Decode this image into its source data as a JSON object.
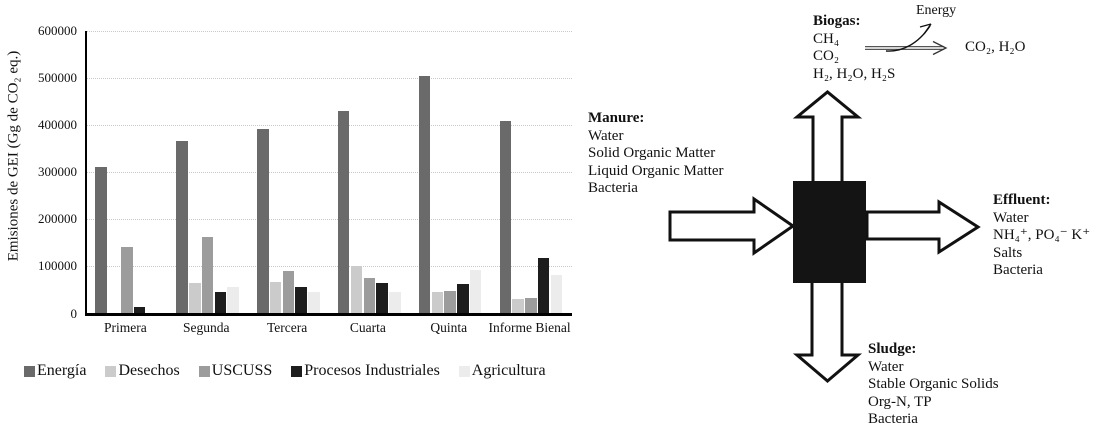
{
  "figure": {
    "chart": {
      "y_axis_title": "Emisiones de GEI (Gg de CO₂ eq.)",
      "chart_data": {
        "type": "bar",
        "title": "",
        "xlabel": "",
        "ylabel": "Emisiones de GEI (Gg de CO2 eq.)",
        "categories": [
          "Primera",
          "Segunda",
          "Tercera",
          "Cuarta",
          "Quinta",
          "Informe Bienal"
        ],
        "series": [
          {
            "name": "Energía",
            "color": "#6a6a6a",
            "values": [
              310000,
              365000,
              392000,
              430000,
              505000,
              408000
            ]
          },
          {
            "name": "Desechos",
            "color": "#cbcbcb",
            "values": [
              0,
              63000,
              67000,
              100000,
              44000,
              30000
            ]
          },
          {
            "name": "USCUSS",
            "color": "#9c9c9c",
            "values": [
              140000,
              161000,
              90000,
              74000,
              47000,
              32000
            ]
          },
          {
            "name": "Procesos Industriales",
            "color": "#1d1d1d",
            "values": [
              13000,
              45000,
              55000,
              64000,
              61000,
              116000
            ]
          },
          {
            "name": "Agricultura",
            "color": "#ececec",
            "values": [
              0,
              56000,
              45000,
              45000,
              91000,
              81000
            ]
          }
        ],
        "ylim": [
          0,
          600000
        ],
        "ytick_step": 100000,
        "grid": true,
        "legend_position": "bottom"
      }
    },
    "diagram": {
      "manure": {
        "title": "Manure:",
        "items": [
          "Water",
          "Solid Organic Matter",
          "Liquid Organic Matter",
          "Bacteria"
        ]
      },
      "biogas": {
        "title": "Biogas:",
        "items": [
          "CH₄",
          "CO₂",
          "H₂, H₂O, H₂S"
        ]
      },
      "effluent": {
        "title": "Effluent:",
        "items": [
          "Water",
          "NH₄⁺, PO₄⁻ K⁺",
          "Salts",
          "Bacteria"
        ]
      },
      "sludge": {
        "title": "Sludge:",
        "items": [
          "Water",
          "Stable Organic Solids",
          "Org-N, TP",
          "Bacteria"
        ]
      },
      "energy_label": "Energy",
      "combustion_products": "CO₂, H₂O"
    }
  }
}
